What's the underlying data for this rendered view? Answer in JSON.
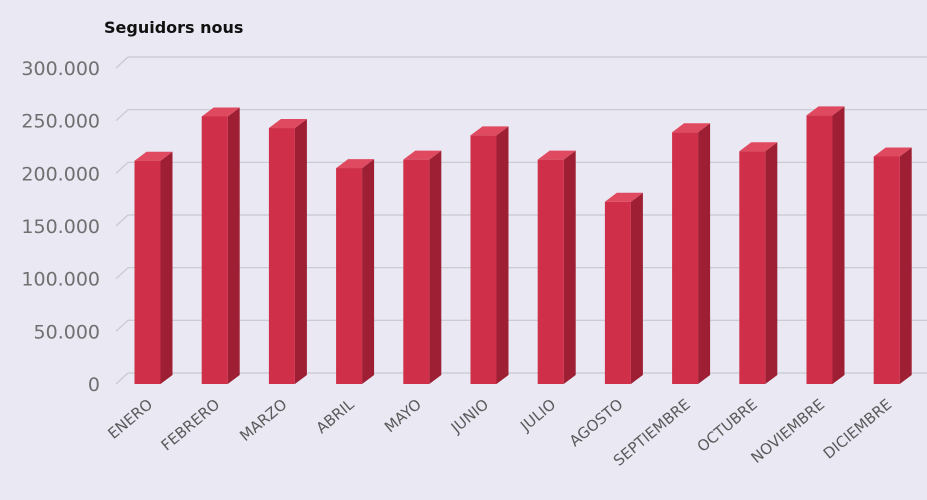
{
  "chart_data": {
    "type": "bar",
    "title": "Seguidors nous",
    "categories": [
      "ENERO",
      "FEBRERO",
      "MARZO",
      "ABRIL",
      "MAYO",
      "JUNIO",
      "JULIO",
      "AGOSTO",
      "SEPTIEMBRE",
      "OCTUBRE",
      "NOVIEMBRE",
      "DICIEMBRE"
    ],
    "values": [
      212000,
      254000,
      243000,
      205000,
      213000,
      236000,
      213000,
      173000,
      239000,
      221000,
      255000,
      216000
    ],
    "y_ticks": [
      "0",
      "50.000",
      "100.000",
      "150.000",
      "200.000",
      "250.000",
      "300.000"
    ],
    "ylim": [
      0,
      300000
    ],
    "grid": true,
    "three_d": true,
    "colors": {
      "bar_front": "#cf2f48",
      "bar_side": "#9e1f33",
      "bar_top": "#e04a60",
      "grid": "#c8c8d2",
      "background": "#e9e8f3"
    }
  }
}
